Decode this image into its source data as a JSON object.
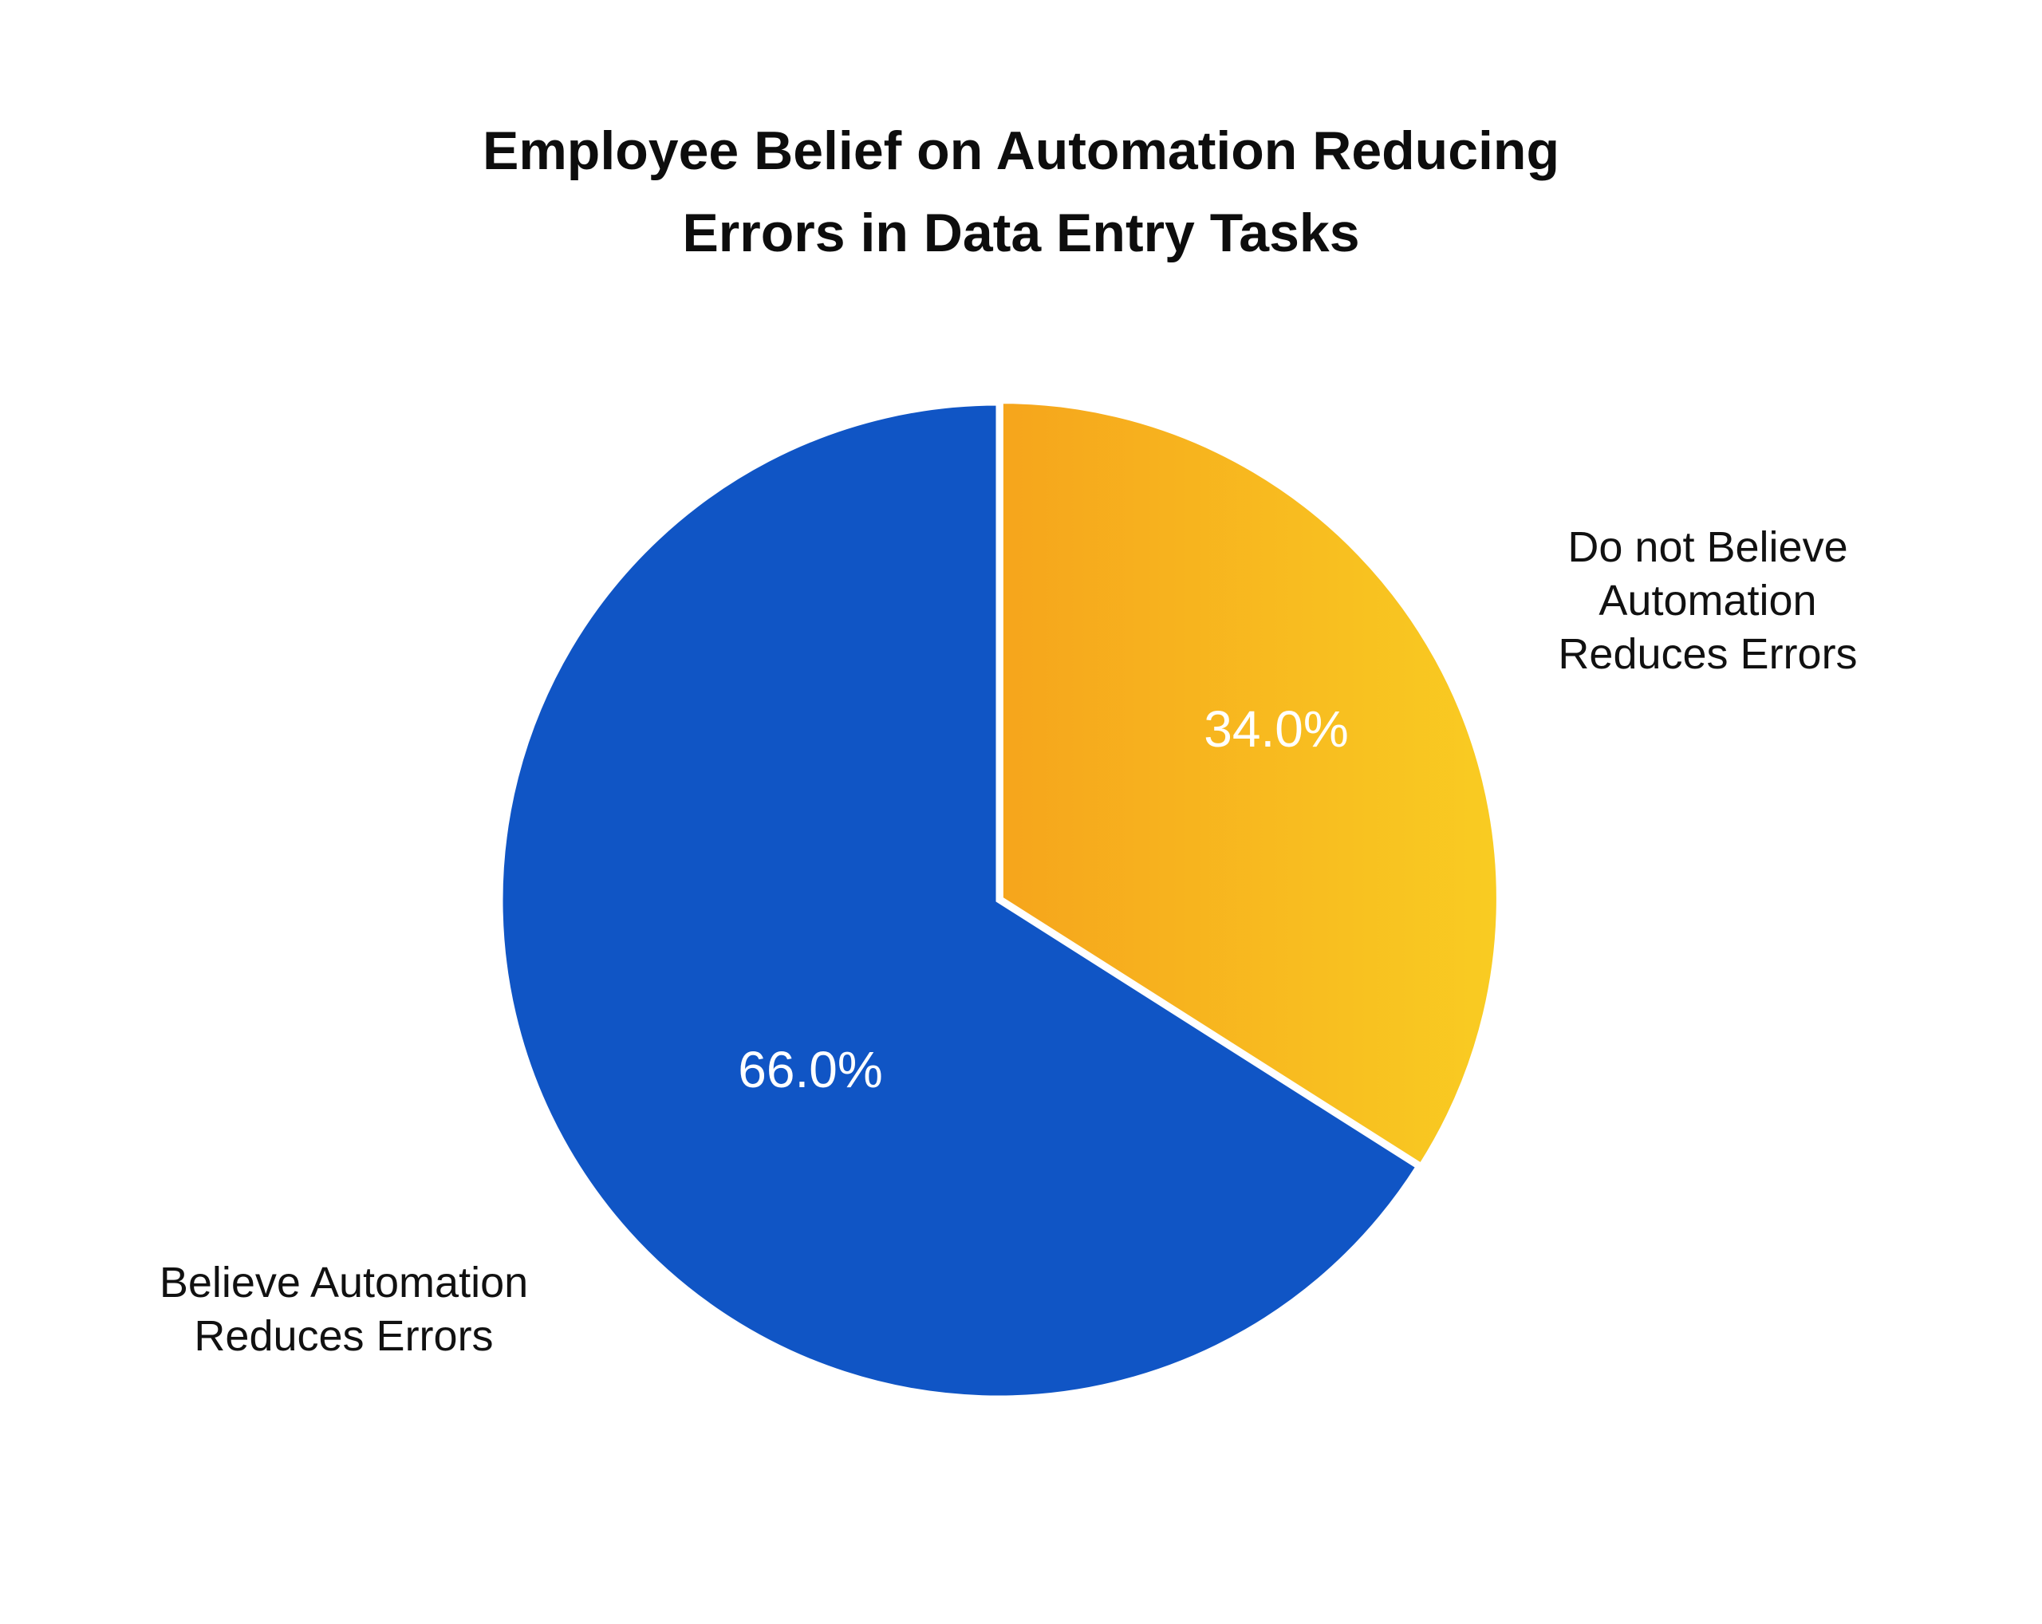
{
  "chart_data": {
    "type": "pie",
    "title": [
      "Employee Belief on Automation Reducing",
      "Errors in Data Entry Tasks"
    ],
    "start_angle": "12 o'clock, clockwise",
    "slices": [
      {
        "label": [
          "Do not Believe",
          "Automation",
          "Reduces Errors"
        ],
        "value": 34.0,
        "display": "34.0%",
        "color": "#F6A51C",
        "color_end": "#F9CC22",
        "exploded": true
      },
      {
        "label": [
          "Believe Automation",
          "Reduces Errors"
        ],
        "value": 66.0,
        "display": "66.0%",
        "color": "#1055C5"
      }
    ]
  }
}
